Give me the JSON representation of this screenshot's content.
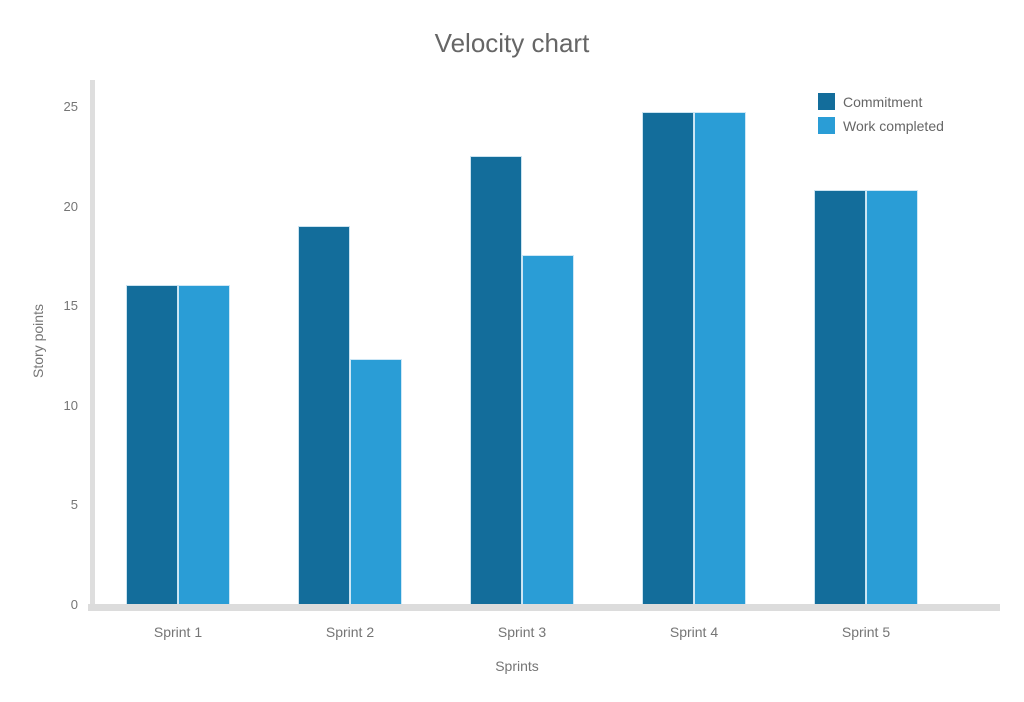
{
  "chart_data": {
    "type": "bar",
    "title": "Velocity chart",
    "xlabel": "Sprints",
    "ylabel": "Story points",
    "categories": [
      "Sprint 1",
      "Sprint 2",
      "Sprint 3",
      "Sprint 4",
      "Sprint 5"
    ],
    "series": [
      {
        "name": "Commitment",
        "color": "#136D9B",
        "values": [
          16,
          19,
          22.5,
          24.7,
          20.8
        ]
      },
      {
        "name": "Work completed",
        "color": "#2A9DD6",
        "values": [
          16,
          12.3,
          17.5,
          24.7,
          20.8
        ]
      }
    ],
    "ylim": [
      0,
      25
    ],
    "yticks": [
      0,
      5,
      10,
      15,
      20,
      25
    ],
    "grid": false,
    "legend_position": "top-right",
    "axis_color": "#dcdcdc",
    "text_color": "#757575",
    "title_color": "#666666"
  }
}
